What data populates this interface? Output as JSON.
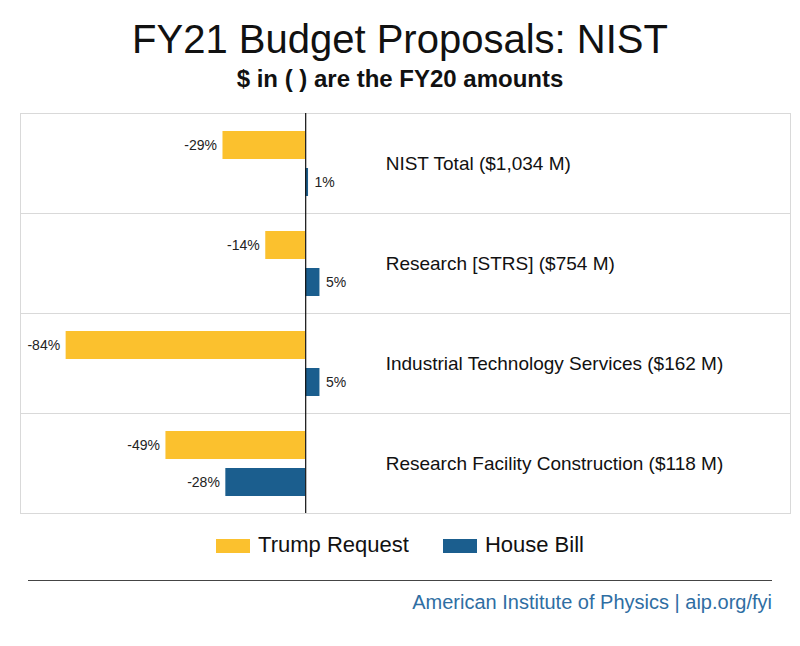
{
  "chart_data": {
    "type": "bar",
    "orientation": "horizontal",
    "title": "FY21 Budget Proposals: NIST",
    "subtitle": "$ in ( ) are the FY20 amounts",
    "categories": [
      "NIST Total ($1,034 M)",
      "Research [STRS] ($754 M)",
      "Industrial Technology Services ($162 M)",
      "Research Facility Construction ($118 M)"
    ],
    "series": [
      {
        "name": "Trump Request",
        "color": "#FBC12E",
        "values": [
          -29,
          -14,
          -84,
          -49
        ],
        "value_labels": [
          "-29%",
          "-14%",
          "-84%",
          "-49%"
        ]
      },
      {
        "name": "House Bill",
        "color": "#1B5E8E",
        "values": [
          1,
          5,
          5,
          -28
        ],
        "value_labels": [
          "1%",
          "5%",
          "5%",
          "-28%"
        ]
      }
    ],
    "xlim": [
      -100,
      170
    ],
    "xticks": [
      0
    ],
    "tick_labels": false,
    "data_labels": true,
    "legend": "bottom",
    "source": "American Institute of Physics | aip.org/fyi"
  }
}
